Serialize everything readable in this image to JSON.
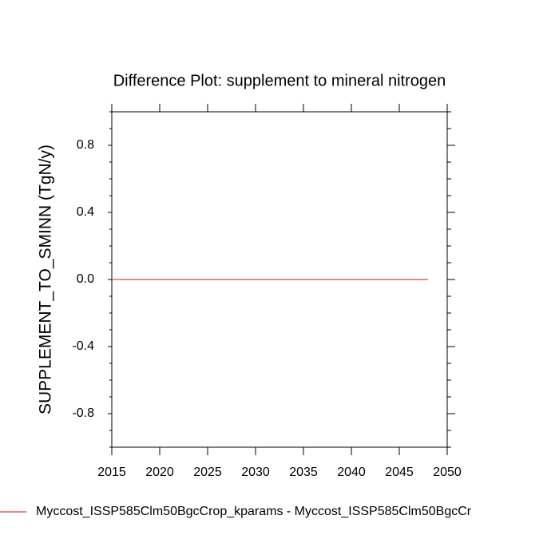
{
  "chart_data": {
    "type": "line",
    "title": "Difference Plot: supplement to mineral nitrogen",
    "y_label": "SUPPLEMENT_TO_SMINN  (TgN/y)",
    "x": [
      2015,
      2016,
      2017,
      2018,
      2019,
      2020,
      2021,
      2022,
      2023,
      2024,
      2025,
      2026,
      2027,
      2028,
      2029,
      2030,
      2031,
      2032,
      2033,
      2034,
      2035,
      2036,
      2037,
      2038,
      2039,
      2040,
      2041,
      2042,
      2043,
      2044,
      2045,
      2046,
      2047,
      2048
    ],
    "series": [
      {
        "name": "Myccost_ISSP585Clm50BgcCrop_kparams - Myccost_ISSP585Clm50BgcCr",
        "color": "#e06060",
        "values": [
          0,
          0,
          0,
          0,
          0,
          0,
          0,
          0,
          0,
          0,
          0,
          0,
          0,
          0,
          0,
          0,
          0,
          0,
          0,
          0,
          0,
          0,
          0,
          0,
          0,
          0,
          0,
          0,
          0,
          0,
          0,
          0,
          0,
          0
        ]
      }
    ],
    "xlim": [
      2015,
      2050
    ],
    "xticks": [
      2015,
      2020,
      2025,
      2030,
      2035,
      2040,
      2045,
      2050
    ],
    "ylim": [
      -1,
      1
    ],
    "yticks": [
      -0.8,
      -0.4,
      {
        "value": 0,
        "label": "0.0"
      },
      0.4,
      0.8
    ],
    "legend": "bottom-left"
  }
}
